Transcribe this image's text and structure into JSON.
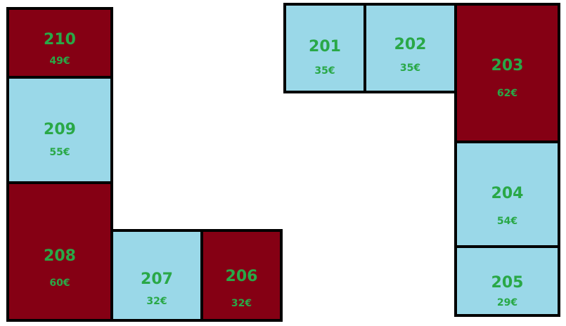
{
  "floor_plan": {
    "rooms": [
      {
        "number": "201",
        "price": "35€",
        "status": "available"
      },
      {
        "number": "202",
        "price": "35€",
        "status": "available"
      },
      {
        "number": "203",
        "price": "62€",
        "status": "occupied"
      },
      {
        "number": "204",
        "price": "54€",
        "status": "available"
      },
      {
        "number": "205",
        "price": "29€",
        "status": "available"
      },
      {
        "number": "206",
        "price": "32€",
        "status": "occupied"
      },
      {
        "number": "207",
        "price": "32€",
        "status": "available"
      },
      {
        "number": "208",
        "price": "60€",
        "status": "occupied"
      },
      {
        "number": "209",
        "price": "55€",
        "status": "available"
      },
      {
        "number": "210",
        "price": "49€",
        "status": "occupied"
      }
    ]
  },
  "colors": {
    "occupied": "#850014",
    "available": "#9ad8e8",
    "label": "#29a847",
    "border": "#000000"
  }
}
